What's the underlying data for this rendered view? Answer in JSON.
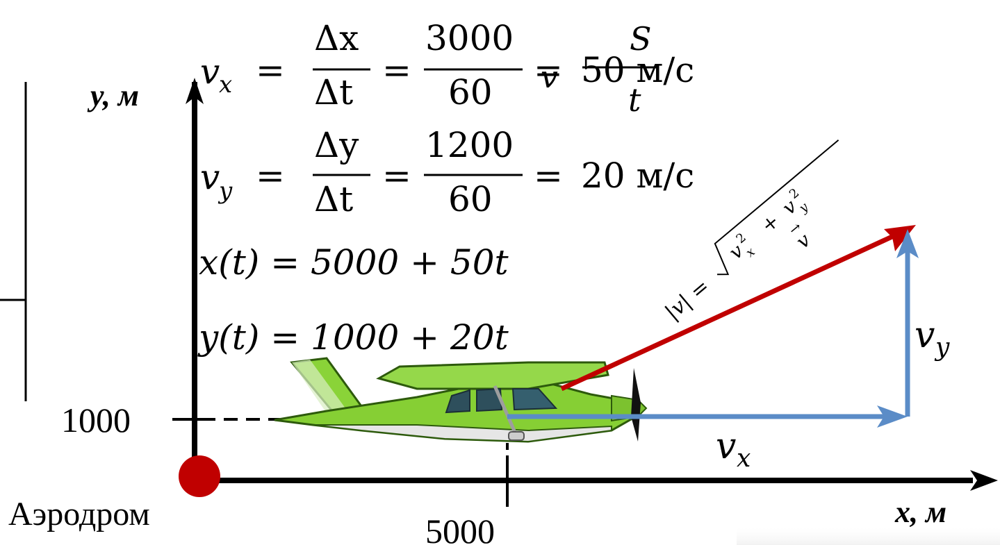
{
  "axes": {
    "y_label": "y, м",
    "x_label": "x, м",
    "y_tick": "1000",
    "x_tick": "5000",
    "origin_label": "Аэродром"
  },
  "formulas": {
    "vx_lhs": "v",
    "vx_sub": "x",
    "vx_num1": "Δx",
    "vx_den1": "Δt",
    "vx_num2": "3000",
    "vx_den2": "60",
    "vx_result": "50 м/с",
    "overlap_lhs": "v",
    "overlap_num": "S",
    "overlap_den": "t",
    "vy_lhs": "v",
    "vy_sub": "y",
    "vy_num1": "Δy",
    "vy_den1": "Δt",
    "vy_num2": "1200",
    "vy_den2": "60",
    "vy_result": "20 м/с",
    "x_eq": "x(t) = 5000 + 50t",
    "y_eq": "y(t) = 1000 + 20t",
    "magnitude_lhs": "|v| =",
    "magnitude_x": "v",
    "magnitude_xsub": "x",
    "magnitude_plus": "+",
    "magnitude_y": "v",
    "magnitude_ysub": "y",
    "magnitude_sq": "2",
    "vector_label": "v"
  },
  "vectors": {
    "vx_label": "v",
    "vx_sub": "x",
    "vy_label": "v",
    "vy_sub": "y"
  },
  "colors": {
    "axis": "#000000",
    "velocity": "#c00000",
    "components": "#5b8cc7",
    "origin_dot": "#c00000",
    "plane_body": "#7ecb2a",
    "plane_dark": "#3e7f10"
  }
}
